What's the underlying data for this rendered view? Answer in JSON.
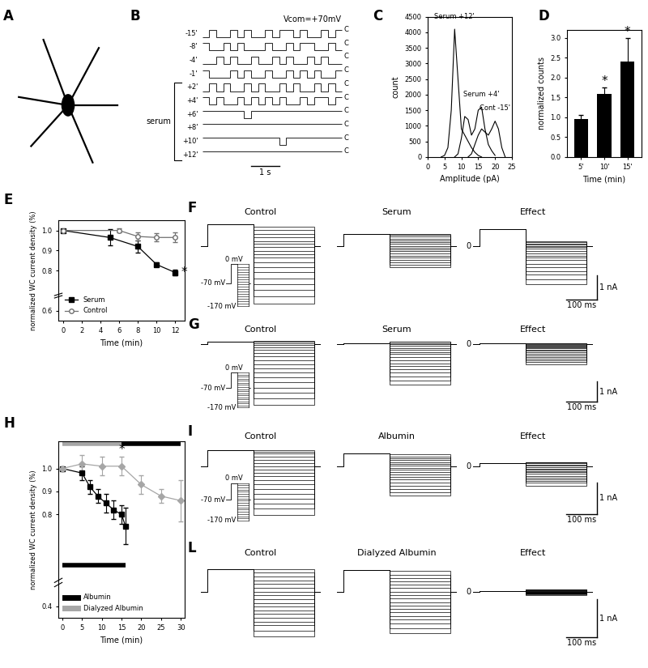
{
  "chart_data": [
    {
      "type": "image",
      "panel_label": "A"
    },
    {
      "type": "single_channel",
      "panel_label": "B",
      "annotation": "Vcom=+70mV",
      "closed_label": "C",
      "bracket_label": "serum",
      "duration_s": 5,
      "scale_bar": {
        "value": 1,
        "label": "1 s"
      },
      "traces": [
        {
          "name": "-15'",
          "serum": false,
          "states": [
            1,
            0,
            1,
            1,
            0,
            1,
            0,
            1,
            1,
            0,
            1,
            0,
            0,
            1,
            0,
            1,
            1,
            0,
            1,
            0
          ]
        },
        {
          "name": "-8'",
          "serum": false,
          "states": [
            0,
            1,
            1,
            0,
            1,
            0,
            1,
            1,
            1,
            0,
            1,
            1,
            0,
            1,
            0,
            0,
            1,
            1,
            0,
            1
          ]
        },
        {
          "name": "-4'",
          "serum": false,
          "states": [
            1,
            1,
            0,
            1,
            0,
            1,
            1,
            0,
            1,
            1,
            0,
            1,
            0,
            1,
            1,
            0,
            1,
            0,
            1,
            1
          ]
        },
        {
          "name": "-1'",
          "serum": false,
          "states": [
            0,
            1,
            1,
            1,
            0,
            1,
            0,
            1,
            1,
            0,
            1,
            1,
            0,
            1,
            0,
            1,
            0,
            1,
            1,
            0
          ]
        },
        {
          "name": "+2'",
          "serum": true,
          "states": [
            1,
            0,
            1,
            0,
            1,
            1,
            0,
            1,
            0,
            1,
            1,
            0,
            1,
            0,
            1,
            1,
            0,
            1,
            0,
            1
          ]
        },
        {
          "name": "+4'",
          "serum": true,
          "states": [
            0,
            1,
            0,
            1,
            1,
            0,
            1,
            0,
            1,
            0,
            1,
            0,
            1,
            1,
            0,
            1,
            0,
            0,
            1,
            0
          ]
        },
        {
          "name": "+6'",
          "serum": true,
          "states": [
            0,
            0,
            0,
            0,
            0,
            0,
            1,
            0,
            0,
            0,
            0,
            0,
            0,
            0,
            0,
            0,
            0,
            0,
            0,
            0
          ]
        },
        {
          "name": "+8'",
          "serum": true,
          "states": [
            0,
            0,
            0,
            0,
            0,
            0,
            0,
            0,
            0,
            0,
            0,
            0,
            0,
            0,
            0,
            0,
            0,
            0,
            0,
            0
          ]
        },
        {
          "name": "+10'",
          "serum": true,
          "states": [
            0,
            0,
            0,
            0,
            0,
            0,
            0,
            0,
            0,
            0,
            0,
            1,
            0,
            0,
            0,
            0,
            0,
            0,
            0,
            0
          ]
        },
        {
          "name": "+12'",
          "serum": true,
          "states": [
            0,
            0,
            0,
            0,
            0,
            0,
            0,
            0,
            0,
            0,
            0,
            0,
            0,
            0,
            0,
            0,
            0,
            0,
            0,
            0
          ]
        }
      ]
    },
    {
      "type": "line",
      "panel_label": "C",
      "x_label": "Amplitude (pA)",
      "y_label": "count",
      "xlim": [
        0,
        25
      ],
      "xticks": [
        0,
        5,
        10,
        15,
        20,
        25
      ],
      "ylim": [
        0,
        4500
      ],
      "yticks": [
        0,
        500,
        1000,
        1500,
        2000,
        2500,
        3000,
        3500,
        4000,
        4500
      ],
      "series": [
        {
          "name": "Serum +12'",
          "color": "#000000",
          "x": [
            4,
            5,
            6,
            7,
            8,
            9,
            10,
            11,
            12,
            13,
            14,
            15,
            16
          ],
          "values": [
            0,
            50,
            300,
            1500,
            4100,
            2500,
            900,
            700,
            500,
            300,
            150,
            50,
            0
          ]
        },
        {
          "name": "Serum +4'",
          "color": "#000000",
          "x": [
            8,
            9,
            10,
            11,
            12,
            13,
            14,
            15,
            16,
            17,
            18,
            19,
            20
          ],
          "values": [
            0,
            100,
            600,
            1300,
            1200,
            700,
            900,
            1500,
            1600,
            900,
            400,
            200,
            50
          ]
        },
        {
          "name": "Cont -15'",
          "color": "#000000",
          "x": [
            12,
            13,
            14,
            15,
            16,
            17,
            18,
            19,
            20,
            21,
            22,
            23
          ],
          "values": [
            0,
            100,
            400,
            700,
            900,
            800,
            700,
            900,
            1150,
            900,
            300,
            0
          ]
        }
      ]
    },
    {
      "type": "bar",
      "panel_label": "D",
      "categories": [
        "5'",
        "10'",
        "15'"
      ],
      "values": [
        0.95,
        1.58,
        2.4
      ],
      "errors": [
        0.1,
        0.18,
        0.6
      ],
      "color": "#000000",
      "ylim": [
        0,
        3.2
      ],
      "yticks": [
        0.0,
        0.5,
        1.0,
        1.5,
        2.0,
        2.5,
        3.0
      ],
      "y_label": "normalized counts",
      "x_label": "Time (min)",
      "significant": [
        false,
        true,
        true
      ],
      "significance_label": "*"
    },
    {
      "type": "line",
      "panel_label": "E",
      "x_label": "Time (min)",
      "y_label": "normalized WC current density (%)",
      "xlim": [
        -0.5,
        13
      ],
      "xticks": [
        0,
        2,
        4,
        6,
        8,
        10,
        12
      ],
      "ylim": [
        0.55,
        1.05
      ],
      "yticks": [
        0.6,
        0.8,
        0.9,
        1.0
      ],
      "legend": "lower left",
      "significance_label": "*",
      "series": [
        {
          "name": "Serum",
          "color": "#000000",
          "marker": "square",
          "x": [
            0,
            5,
            8,
            10,
            12
          ],
          "values": [
            1.0,
            0.965,
            0.92,
            0.83,
            0.79
          ],
          "errors": [
            0,
            0.04,
            0.03,
            0.01,
            0.015
          ],
          "significant_x": [
            12
          ]
        },
        {
          "name": "Control",
          "color": "#707070",
          "marker": "open_circle",
          "x": [
            0,
            6,
            8,
            10,
            12
          ],
          "values": [
            1.0,
            1.0,
            0.97,
            0.965,
            0.965
          ],
          "errors": [
            0,
            0.01,
            0.02,
            0.02,
            0.025
          ],
          "significant_x": []
        }
      ]
    },
    {
      "type": "traces",
      "panel_label": "F",
      "durations_ms": [
        20,
        150,
        200,
        20
      ],
      "xlim": [
        0,
        390
      ],
      "ylim": [
        -2.7,
        1.2
      ],
      "tick_labels": false,
      "protocol_labels": [
        "0 mV",
        "-70 mV",
        "-170 mV"
      ],
      "zero_label": "0",
      "scale_bars": {
        "current": {
          "value": 1,
          "label": "1 nA"
        },
        "time": {
          "value": 100,
          "label": "100 ms"
        }
      },
      "traces": [
        {
          "title": "Control",
          "pre": 0.9,
          "steps": [
            -2.4,
            -2.1,
            -1.85,
            -1.6,
            -1.35,
            -1.1,
            -0.9,
            -0.7,
            -0.5,
            -0.35,
            -0.2,
            -0.05,
            0.1,
            0.2,
            0.35,
            0.5,
            0.65,
            0.8
          ]
        },
        {
          "title": "Serum",
          "pre": 0.5,
          "steps": [
            -0.9,
            -0.8,
            -0.7,
            -0.6,
            -0.5,
            -0.4,
            -0.3,
            -0.22,
            -0.15,
            -0.08,
            0.0,
            0.08,
            0.15,
            0.22,
            0.3,
            0.38,
            0.45,
            0.5
          ]
        },
        {
          "title": "Effect",
          "pre": 0.7,
          "steps": [
            -1.6,
            -1.4,
            -1.2,
            -1.05,
            -0.9,
            -0.75,
            -0.6,
            -0.5,
            -0.4,
            -0.3,
            -0.2,
            -0.12,
            -0.05,
            0.0,
            0.05,
            0.1,
            0.15,
            0.2
          ]
        }
      ]
    },
    {
      "type": "traces",
      "panel_label": "G",
      "durations_ms": [
        20,
        150,
        200,
        20
      ],
      "xlim": [
        0,
        390
      ],
      "ylim": [
        -3.3,
        0.5
      ],
      "tick_labels": false,
      "protocol_labels": [
        "0 mV",
        "-70 mV",
        "-170 mV"
      ],
      "zero_label": "0",
      "scale_bars": {
        "current": {
          "value": 1,
          "label": "1 nA"
        },
        "time": {
          "value": 100,
          "label": "100 ms"
        }
      },
      "traces": [
        {
          "title": "Control",
          "pre": 0.1,
          "steps": [
            -3.0,
            -2.7,
            -2.4,
            -2.15,
            -1.9,
            -1.65,
            -1.4,
            -1.2,
            -1.0,
            -0.8,
            -0.6,
            -0.45,
            -0.3,
            -0.15,
            -0.05,
            0.05,
            0.1,
            0.15
          ]
        },
        {
          "title": "Serum",
          "pre": 0.05,
          "steps": [
            -2.0,
            -1.8,
            -1.6,
            -1.4,
            -1.25,
            -1.1,
            -0.95,
            -0.8,
            -0.65,
            -0.5,
            -0.4,
            -0.3,
            -0.2,
            -0.1,
            0.0,
            0.05,
            0.1,
            0.1
          ]
        },
        {
          "title": "Effect",
          "pre": 0.05,
          "steps": [
            -1.0,
            -0.9,
            -0.8,
            -0.72,
            -0.64,
            -0.56,
            -0.48,
            -0.4,
            -0.33,
            -0.27,
            -0.21,
            -0.16,
            -0.11,
            -0.07,
            -0.03,
            0.0,
            0.02,
            0.04
          ]
        }
      ]
    },
    {
      "type": "line",
      "panel_label": "H",
      "x_label": "Time (min)",
      "y_label": "normalized WC current density (%)",
      "xlim": [
        -1,
        31
      ],
      "xticks": [
        0,
        5,
        10,
        15,
        20,
        25,
        30
      ],
      "ylim": [
        0.35,
        1.12
      ],
      "yticks": [
        0.4,
        0.8,
        0.9,
        1.0
      ],
      "legend": "lower left",
      "significance_label": "*",
      "series": [
        {
          "name": "Albumin",
          "color": "#000000",
          "marker": "square",
          "x": [
            0,
            5,
            7,
            9,
            11,
            13,
            15,
            16
          ],
          "values": [
            1.0,
            0.98,
            0.92,
            0.88,
            0.85,
            0.82,
            0.8,
            0.75
          ],
          "errors": [
            0,
            0.03,
            0.03,
            0.03,
            0.04,
            0.04,
            0.04,
            0.08
          ],
          "significant_x": []
        },
        {
          "name": "Dialyzed Albumin",
          "color": "#a6a6a6",
          "marker": "diamond",
          "x": [
            0,
            5,
            10,
            15,
            20,
            25,
            30
          ],
          "values": [
            1.0,
            1.02,
            1.01,
            1.01,
            0.93,
            0.88,
            0.86
          ],
          "errors": [
            0,
            0.04,
            0.04,
            0.04,
            0.04,
            0.03,
            0.09
          ],
          "significant_x": [
            15
          ]
        }
      ],
      "protocols": [
        {
          "segments": [
            {
              "name": "Dialyzed Albumin",
              "start": 0,
              "end": 15
            },
            {
              "name": "Albumin",
              "start": 15,
              "end": 30
            }
          ]
        },
        {
          "segments": [
            {
              "name": "Albumin",
              "start": 0,
              "end": 16
            }
          ]
        }
      ]
    },
    {
      "type": "traces",
      "panel_label": "I",
      "durations_ms": [
        20,
        150,
        200,
        20
      ],
      "xlim": [
        0,
        390
      ],
      "ylim": [
        -1.8,
        0.8
      ],
      "tick_labels": false,
      "protocol_labels": [
        "0 mV",
        "-70 mV",
        "-170 mV"
      ],
      "zero_label": "0",
      "scale_bars": {
        "current": {
          "value": 1,
          "label": "1 nA"
        },
        "time": {
          "value": 100,
          "label": "100 ms"
        }
      },
      "traces": [
        {
          "title": "Control",
          "pre": 0.5,
          "steps": [
            -1.5,
            -1.3,
            -1.15,
            -1.0,
            -0.85,
            -0.7,
            -0.55,
            -0.42,
            -0.3,
            -0.2,
            -0.1,
            0.0,
            0.1,
            0.2,
            0.3,
            0.4,
            0.45,
            0.5
          ]
        },
        {
          "title": "Albumin",
          "pre": 0.4,
          "steps": [
            -0.9,
            -0.8,
            -0.7,
            -0.6,
            -0.5,
            -0.4,
            -0.32,
            -0.24,
            -0.16,
            -0.1,
            -0.04,
            0.02,
            0.08,
            0.14,
            0.2,
            0.26,
            0.32,
            0.38
          ]
        },
        {
          "title": "Effect",
          "pre": 0.1,
          "steps": [
            -0.6,
            -0.5,
            -0.45,
            -0.4,
            -0.35,
            -0.3,
            -0.23,
            -0.18,
            -0.14,
            -0.1,
            -0.06,
            -0.02,
            0.02,
            0.06,
            0.1,
            0.14,
            0.13,
            0.12
          ]
        }
      ]
    },
    {
      "type": "traces",
      "panel_label": "L",
      "durations_ms": [
        20,
        150,
        200,
        20
      ],
      "xlim": [
        0,
        390
      ],
      "ylim": [
        -1.5,
        0.9
      ],
      "tick_labels": false,
      "zero_label": "0",
      "scale_bars": {
        "current": {
          "value": 1,
          "label": "1 nA"
        },
        "time": {
          "value": 100,
          "label": "100 ms"
        }
      },
      "traces": [
        {
          "title": "Control",
          "pre": 0.6,
          "steps": [
            -1.2,
            -1.05,
            -0.9,
            -0.8,
            -0.7,
            -0.6,
            -0.5,
            -0.4,
            -0.3,
            -0.2,
            -0.1,
            0.0,
            0.1,
            0.2,
            0.3,
            0.4,
            0.5,
            0.6
          ]
        },
        {
          "title": "Dialyzed Albumin",
          "pre": 0.58,
          "steps": [
            -1.1,
            -0.98,
            -0.85,
            -0.75,
            -0.65,
            -0.55,
            -0.46,
            -0.37,
            -0.28,
            -0.19,
            -0.1,
            0.0,
            0.09,
            0.18,
            0.27,
            0.36,
            0.45,
            0.55
          ]
        },
        {
          "title": "Effect",
          "pre": 0.02,
          "steps": [
            -0.1,
            -0.07,
            -0.05,
            -0.05,
            -0.05,
            -0.05,
            -0.04,
            -0.04,
            -0.02,
            -0.01,
            0,
            0,
            0.01,
            0.02,
            0.03,
            0.04,
            0.05,
            0.05
          ]
        }
      ]
    }
  ]
}
